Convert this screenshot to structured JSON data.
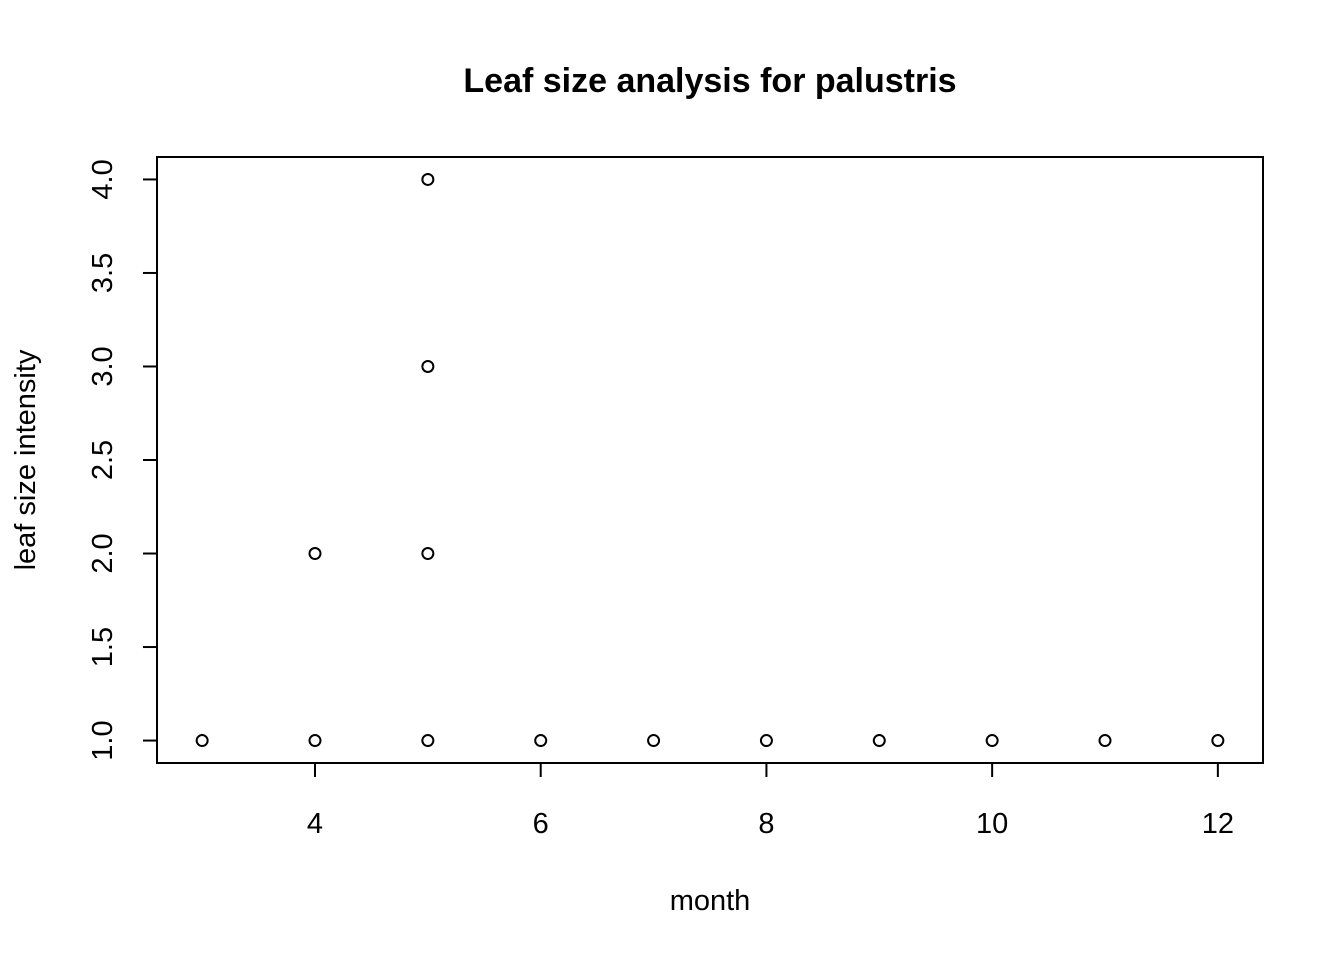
{
  "chart_data": {
    "type": "scatter",
    "title": "Leaf size analysis for palustris",
    "xlabel": "month",
    "ylabel": "leaf size intensity",
    "xlim": [
      2.6,
      12.4
    ],
    "ylim": [
      0.88,
      4.12
    ],
    "xticks": [
      4,
      6,
      8,
      10,
      12
    ],
    "xtick_labels": [
      "4",
      "6",
      "8",
      "10",
      "12"
    ],
    "yticks": [
      1.0,
      1.5,
      2.0,
      2.5,
      3.0,
      3.5,
      4.0
    ],
    "ytick_labels": [
      "1.0",
      "1.5",
      "2.0",
      "2.5",
      "3.0",
      "3.5",
      "4.0"
    ],
    "grid": false,
    "marker": "open-circle",
    "points": [
      {
        "x": 3,
        "y": 1
      },
      {
        "x": 4,
        "y": 1
      },
      {
        "x": 4,
        "y": 2
      },
      {
        "x": 5,
        "y": 1
      },
      {
        "x": 5,
        "y": 2
      },
      {
        "x": 5,
        "y": 3
      },
      {
        "x": 5,
        "y": 4
      },
      {
        "x": 6,
        "y": 1
      },
      {
        "x": 7,
        "y": 1
      },
      {
        "x": 8,
        "y": 1
      },
      {
        "x": 9,
        "y": 1
      },
      {
        "x": 10,
        "y": 1
      },
      {
        "x": 11,
        "y": 1
      },
      {
        "x": 12,
        "y": 1
      }
    ],
    "colors": {
      "background": "#ffffff",
      "foreground": "#000000"
    }
  }
}
